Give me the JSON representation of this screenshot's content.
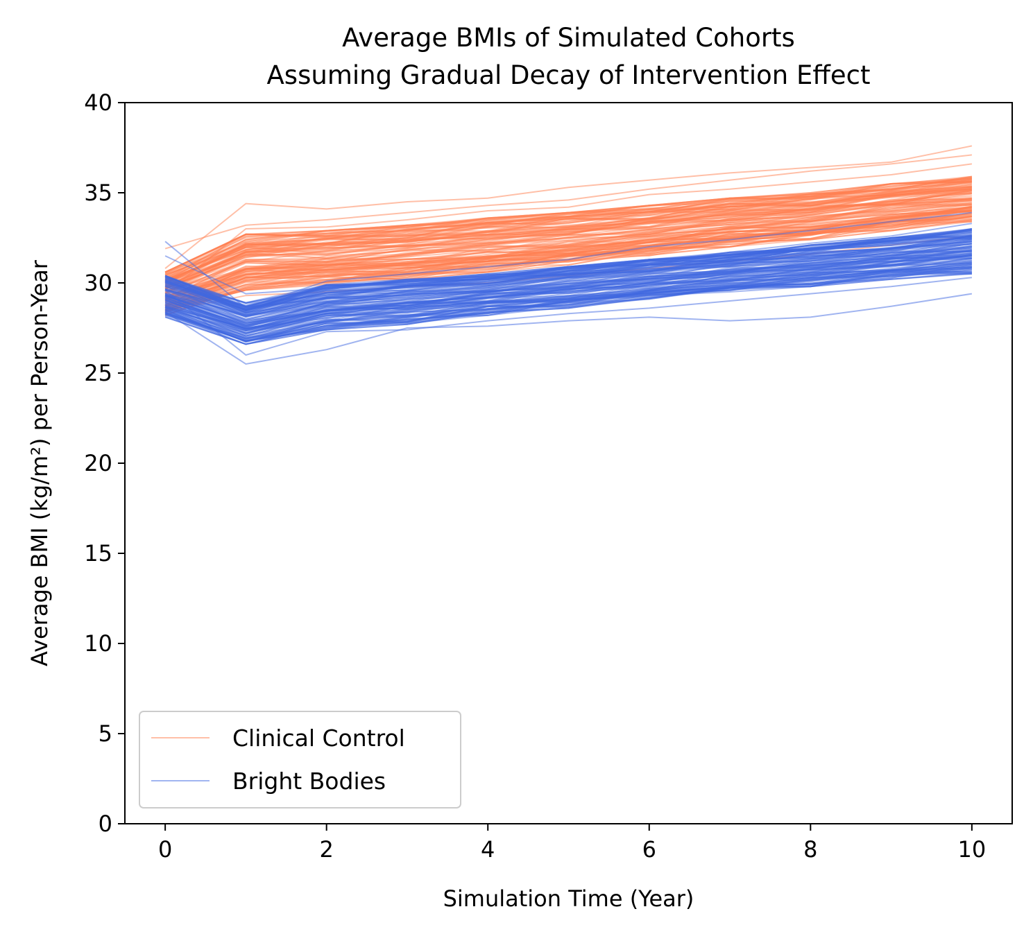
{
  "chart_data": {
    "type": "line",
    "title": "Average BMIs of Simulated Cohorts",
    "subtitle": "Assuming Gradual Decay of Intervention Effect",
    "xlabel": "Simulation Time (Year)",
    "ylabel": "Average BMI (kg/m²) per Person-Year",
    "xlim": [
      -0.5,
      10.5
    ],
    "ylim": [
      0,
      40
    ],
    "xticks": [
      0,
      2,
      4,
      6,
      8,
      10
    ],
    "yticks": [
      0,
      5,
      10,
      15,
      20,
      25,
      30,
      35,
      40
    ],
    "x": [
      0,
      1,
      2,
      3,
      4,
      5,
      6,
      7,
      8,
      9,
      10
    ],
    "grid": false,
    "legend_position": "lower-left",
    "series": [
      {
        "name": "Clinical Control",
        "color": "#ff7f50",
        "band_lower": [
          28.2,
          29.6,
          29.9,
          30.2,
          30.6,
          31.0,
          31.5,
          32.0,
          32.4,
          32.9,
          33.4
        ],
        "band_upper": [
          30.6,
          32.7,
          32.9,
          33.2,
          33.6,
          33.9,
          34.3,
          34.7,
          35.0,
          35.5,
          35.9
        ],
        "outliers": [
          [
            30.8,
            34.4,
            34.1,
            34.5,
            34.7,
            35.3,
            35.7,
            36.1,
            36.4,
            36.7,
            37.6
          ],
          [
            31.9,
            33.2,
            33.5,
            33.9,
            34.3,
            34.6,
            35.2,
            35.7,
            36.2,
            36.6,
            37.1
          ],
          [
            28.4,
            29.3,
            29.5,
            29.8,
            30.0,
            30.4,
            30.8,
            31.2,
            31.6,
            32.1,
            32.6
          ],
          [
            29.4,
            33.0,
            33.1,
            33.5,
            34.0,
            34.2,
            34.9,
            35.2,
            35.6,
            36.0,
            36.6
          ]
        ]
      },
      {
        "name": "Bright Bodies",
        "color": "#4169e1",
        "band_lower": [
          28.1,
          26.6,
          27.4,
          27.7,
          28.2,
          28.6,
          29.1,
          29.5,
          29.8,
          30.2,
          30.5
        ],
        "band_upper": [
          30.4,
          28.9,
          29.9,
          30.2,
          30.5,
          30.9,
          31.3,
          31.7,
          32.1,
          32.5,
          33.0
        ],
        "outliers": [
          [
            28.4,
            25.5,
            26.3,
            27.5,
            27.6,
            27.9,
            28.1,
            27.9,
            28.1,
            28.7,
            29.4
          ],
          [
            32.3,
            28.6,
            30.1,
            30.5,
            30.9,
            31.3,
            32.0,
            32.4,
            32.9,
            33.4,
            33.9
          ],
          [
            29.6,
            26.0,
            27.3,
            27.4,
            27.9,
            28.3,
            28.6,
            29.0,
            29.4,
            29.8,
            30.3
          ],
          [
            31.5,
            29.4,
            29.7,
            30.1,
            30.4,
            30.8,
            31.2,
            31.7,
            32.2,
            32.6,
            33.3
          ]
        ]
      }
    ]
  }
}
